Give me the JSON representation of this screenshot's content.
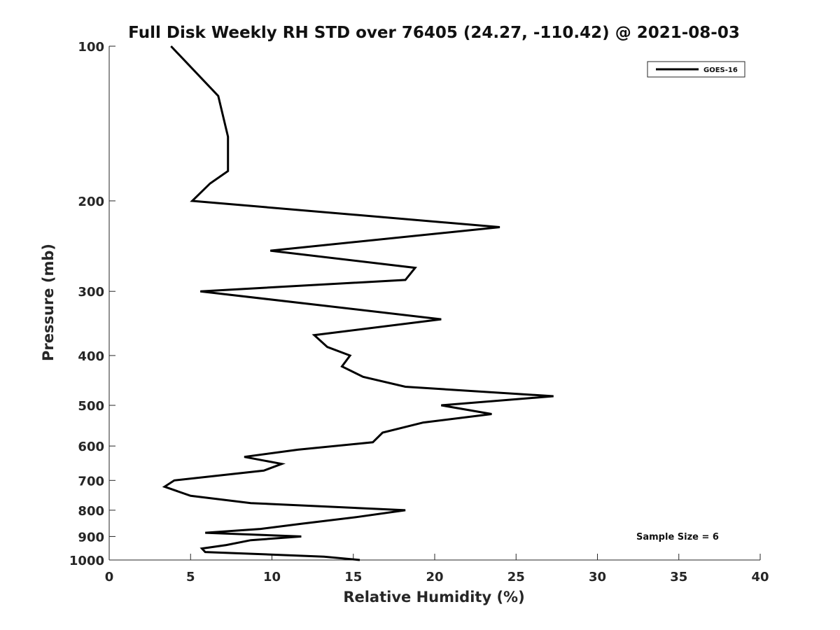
{
  "chart_data": {
    "type": "line",
    "title": "Full Disk Weekly RH STD over 76405 (24.27, -110.42) @ 2021-08-03",
    "xlabel": "Relative Humidity (%)",
    "ylabel": "Pressure (mb)",
    "xlim": [
      0,
      40
    ],
    "ylim": [
      100,
      1000
    ],
    "yscale": "log",
    "y_reversed": true,
    "x_ticks": [
      0,
      5,
      10,
      15,
      20,
      25,
      30,
      35,
      40
    ],
    "y_ticks": [
      100,
      200,
      300,
      400,
      500,
      600,
      700,
      800,
      900,
      1000
    ],
    "grid": false,
    "legend_position": "top-right",
    "annotation": "Sample Size = 6",
    "series": [
      {
        "name": "GOES-16",
        "color": "#000000",
        "x": [
          3.8,
          6.7,
          7.3,
          7.3,
          6.2,
          5.1,
          24.0,
          9.9,
          18.8,
          18.2,
          5.6,
          20.4,
          12.6,
          13.4,
          14.8,
          14.3,
          15.6,
          18.2,
          27.3,
          20.4,
          23.5,
          19.3,
          16.8,
          16.2,
          11.6,
          8.3,
          10.6,
          9.5,
          4.0,
          3.4,
          5.0,
          8.7,
          18.2,
          15.2,
          11.8,
          9.3,
          5.9,
          11.8,
          8.7,
          7.2,
          5.7,
          5.9,
          13.2,
          15.4
        ],
        "y": [
          100,
          125,
          150,
          175,
          185,
          200,
          225,
          250,
          270,
          285,
          300,
          340,
          365,
          385,
          400,
          420,
          440,
          460,
          480,
          500,
          520,
          540,
          565,
          590,
          610,
          630,
          650,
          670,
          700,
          720,
          750,
          775,
          800,
          825,
          850,
          870,
          885,
          900,
          915,
          935,
          950,
          965,
          985,
          1000
        ]
      }
    ]
  }
}
